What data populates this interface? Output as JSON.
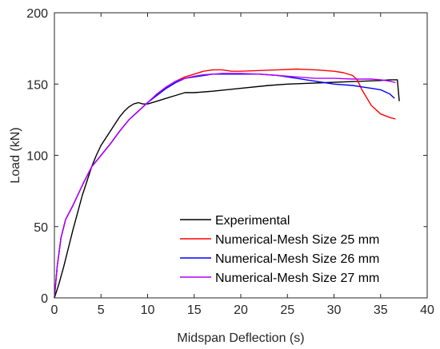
{
  "chart_data": {
    "type": "line",
    "title": "",
    "xlabel": "Midspan Deflection (s)",
    "ylabel": "Load (kN)",
    "xlim": [
      0,
      40
    ],
    "ylim": [
      0,
      200
    ],
    "xticks": [
      0,
      5,
      10,
      15,
      20,
      25,
      30,
      35,
      40
    ],
    "yticks": [
      0,
      50,
      100,
      150,
      200
    ],
    "grid": false,
    "legend_position": "bottom-right",
    "series": [
      {
        "name": "Experimental",
        "color": "#000000",
        "points": [
          [
            0,
            0
          ],
          [
            0.5,
            10
          ],
          [
            1,
            22
          ],
          [
            1.5,
            35
          ],
          [
            2,
            48
          ],
          [
            2.5,
            60
          ],
          [
            3,
            72
          ],
          [
            3.5,
            82
          ],
          [
            4,
            92
          ],
          [
            4.5,
            100
          ],
          [
            5,
            107
          ],
          [
            5.5,
            112
          ],
          [
            6,
            117
          ],
          [
            6.5,
            122
          ],
          [
            7,
            127
          ],
          [
            7.5,
            131
          ],
          [
            8,
            134
          ],
          [
            8.5,
            136
          ],
          [
            9,
            137
          ],
          [
            9.5,
            136
          ],
          [
            10,
            136
          ],
          [
            11,
            138
          ],
          [
            12,
            140
          ],
          [
            13,
            142
          ],
          [
            14,
            144
          ],
          [
            15,
            144
          ],
          [
            17,
            145
          ],
          [
            20,
            147
          ],
          [
            23,
            149
          ],
          [
            25,
            150
          ],
          [
            27,
            150.5
          ],
          [
            29,
            151
          ],
          [
            31,
            151.5
          ],
          [
            33,
            152
          ],
          [
            35,
            152.5
          ],
          [
            36,
            153
          ],
          [
            36.8,
            153
          ],
          [
            37,
            138
          ]
        ]
      },
      {
        "name": "Numerical-Mesh Size 25 mm",
        "color": "#ff0000",
        "points": [
          [
            0,
            0
          ],
          [
            0.3,
            22
          ],
          [
            0.7,
            42
          ],
          [
            1.2,
            55
          ],
          [
            2,
            65
          ],
          [
            3,
            79
          ],
          [
            4,
            92
          ],
          [
            5,
            100
          ],
          [
            6,
            108
          ],
          [
            7,
            117
          ],
          [
            8,
            125
          ],
          [
            9,
            131
          ],
          [
            10,
            137
          ],
          [
            11,
            143
          ],
          [
            12,
            148
          ],
          [
            13,
            152
          ],
          [
            14,
            155
          ],
          [
            15,
            157
          ],
          [
            16,
            159
          ],
          [
            17,
            160
          ],
          [
            18,
            160
          ],
          [
            19,
            159
          ],
          [
            20,
            159
          ],
          [
            22,
            159.5
          ],
          [
            24,
            160
          ],
          [
            26,
            160.5
          ],
          [
            28,
            160
          ],
          [
            30,
            159
          ],
          [
            31,
            158
          ],
          [
            32,
            156
          ],
          [
            32.5,
            153
          ],
          [
            33,
            146
          ],
          [
            34,
            135
          ],
          [
            35,
            129
          ],
          [
            36,
            126.5
          ],
          [
            36.6,
            125.5
          ]
        ]
      },
      {
        "name": "Numerical-Mesh Size 26 mm",
        "color": "#0000ff",
        "points": [
          [
            0,
            0
          ],
          [
            0.3,
            22
          ],
          [
            0.7,
            42
          ],
          [
            1.2,
            55
          ],
          [
            2,
            65
          ],
          [
            3,
            79
          ],
          [
            4,
            92
          ],
          [
            5,
            100
          ],
          [
            6,
            108
          ],
          [
            7,
            117
          ],
          [
            8,
            125
          ],
          [
            9,
            131
          ],
          [
            10,
            137
          ],
          [
            11,
            142
          ],
          [
            12,
            147
          ],
          [
            13,
            151
          ],
          [
            14,
            154
          ],
          [
            15,
            155
          ],
          [
            16,
            156
          ],
          [
            17,
            157
          ],
          [
            18,
            157
          ],
          [
            20,
            157
          ],
          [
            22,
            157
          ],
          [
            24,
            156
          ],
          [
            26,
            154
          ],
          [
            28,
            152
          ],
          [
            30,
            150
          ],
          [
            32,
            149
          ],
          [
            33,
            148
          ],
          [
            34,
            147
          ],
          [
            35,
            146
          ],
          [
            36,
            143
          ],
          [
            36.5,
            140
          ]
        ]
      },
      {
        "name": "Numerical-Mesh Size 27 mm",
        "color": "#b000ff",
        "points": [
          [
            0,
            0
          ],
          [
            0.3,
            22
          ],
          [
            0.7,
            42
          ],
          [
            1.2,
            55
          ],
          [
            2,
            65
          ],
          [
            3,
            79
          ],
          [
            4,
            92
          ],
          [
            5,
            100
          ],
          [
            6,
            108
          ],
          [
            7,
            117
          ],
          [
            8,
            125
          ],
          [
            9,
            131
          ],
          [
            10,
            137
          ],
          [
            11,
            143
          ],
          [
            12,
            148
          ],
          [
            13,
            152
          ],
          [
            14,
            154
          ],
          [
            15,
            155.5
          ],
          [
            16,
            156.5
          ],
          [
            17,
            157
          ],
          [
            18,
            157.5
          ],
          [
            20,
            157.5
          ],
          [
            22,
            157
          ],
          [
            24,
            156
          ],
          [
            26,
            155
          ],
          [
            28,
            154
          ],
          [
            30,
            154
          ],
          [
            32,
            153.5
          ],
          [
            34,
            153.5
          ],
          [
            35,
            153
          ],
          [
            36,
            152
          ],
          [
            36.6,
            151
          ]
        ]
      }
    ]
  }
}
